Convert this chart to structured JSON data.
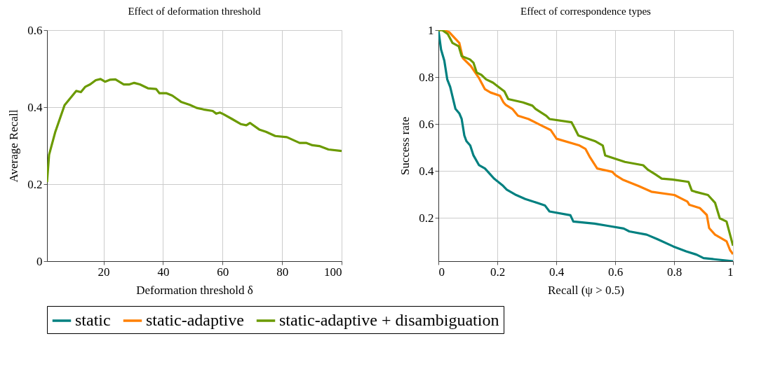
{
  "chart_data": [
    {
      "type": "line",
      "title": "Effect of deformation threshold",
      "xlabel": "Deformation threshold δ",
      "ylabel": "Average Recall",
      "xlim": [
        1,
        100
      ],
      "xticks": [
        20,
        40,
        60,
        80,
        100
      ],
      "ylim": [
        0,
        0.6
      ],
      "yticks": [
        0,
        0.2,
        0.4,
        0.6
      ],
      "grid": true,
      "legend": false,
      "series": [
        {
          "color": "#6b9a00",
          "x": [
            1,
            1.7,
            3.8,
            6.9,
            10.8,
            12.4,
            13.9,
            15.5,
            17.4,
            19,
            20.5,
            22.1,
            24,
            26.8,
            28.7,
            30.3,
            32.2,
            34.9,
            37.7,
            38.8,
            41.2,
            43.1,
            46.2,
            49,
            51.3,
            53.6,
            56.7,
            57.9,
            59.1,
            60.2,
            63,
            66.1,
            68,
            69.2,
            72.3,
            74.6,
            77.7,
            81.6,
            85.9,
            88.2,
            90.2,
            92.5,
            95.6,
            100
          ],
          "values": [
            0.205,
            0.276,
            0.336,
            0.405,
            0.442,
            0.439,
            0.453,
            0.459,
            0.47,
            0.473,
            0.466,
            0.471,
            0.472,
            0.459,
            0.459,
            0.463,
            0.459,
            0.449,
            0.447,
            0.436,
            0.436,
            0.43,
            0.413,
            0.406,
            0.398,
            0.394,
            0.39,
            0.383,
            0.386,
            0.382,
            0.37,
            0.356,
            0.353,
            0.359,
            0.342,
            0.336,
            0.325,
            0.322,
            0.307,
            0.307,
            0.301,
            0.299,
            0.29,
            0.286
          ]
        }
      ]
    },
    {
      "type": "line",
      "title": "Effect of correspondence types",
      "xlabel": "Recall (ψ > 0.5)",
      "ylabel": "Success rate",
      "xlim": [
        0,
        1
      ],
      "xticks": [
        0,
        0.2,
        0.4,
        0.6,
        0.8,
        1
      ],
      "ylim": [
        0.015,
        1
      ],
      "yticks": [
        0.2,
        0.4,
        0.6,
        0.8,
        1
      ],
      "grid": true,
      "legend": "bottom",
      "series": [
        {
          "name": "static",
          "color": "#008080",
          "x": [
            0,
            0.009,
            0.02,
            0.03,
            0.04,
            0.058,
            0.071,
            0.079,
            0.088,
            0.095,
            0.108,
            0.119,
            0.138,
            0.158,
            0.189,
            0.217,
            0.232,
            0.264,
            0.295,
            0.334,
            0.362,
            0.377,
            0.448,
            0.458,
            0.53,
            0.578,
            0.629,
            0.648,
            0.707,
            0.743,
            0.797,
            0.841,
            0.876,
            0.9,
            1
          ],
          "values": [
            1,
            0.917,
            0.87,
            0.79,
            0.758,
            0.664,
            0.645,
            0.621,
            0.551,
            0.527,
            0.508,
            0.466,
            0.424,
            0.41,
            0.367,
            0.339,
            0.32,
            0.297,
            0.28,
            0.264,
            0.252,
            0.227,
            0.211,
            0.184,
            0.175,
            0.165,
            0.154,
            0.142,
            0.128,
            0.109,
            0.078,
            0.057,
            0.043,
            0.028,
            0.015
          ]
        },
        {
          "name": "static-adaptive",
          "color": "#ff8000",
          "x": [
            0,
            0.016,
            0.036,
            0.071,
            0.083,
            0.11,
            0.138,
            0.158,
            0.177,
            0.209,
            0.221,
            0.228,
            0.251,
            0.27,
            0.306,
            0.342,
            0.381,
            0.401,
            0.479,
            0.499,
            0.515,
            0.539,
            0.59,
            0.601,
            0.625,
            0.68,
            0.723,
            0.801,
            0.845,
            0.852,
            0.888,
            0.911,
            0.919,
            0.939,
            0.978,
            0.99,
            1
          ],
          "values": [
            1,
            1,
            0.992,
            0.945,
            0.88,
            0.847,
            0.795,
            0.748,
            0.734,
            0.72,
            0.692,
            0.682,
            0.664,
            0.635,
            0.621,
            0.598,
            0.574,
            0.537,
            0.508,
            0.494,
            0.457,
            0.41,
            0.396,
            0.382,
            0.363,
            0.335,
            0.311,
            0.297,
            0.269,
            0.255,
            0.241,
            0.212,
            0.156,
            0.128,
            0.1,
            0.062,
            0.045
          ]
        },
        {
          "name": "static-adaptive + disambiguation",
          "color": "#6b9a00",
          "x": [
            0,
            0.013,
            0.032,
            0.048,
            0.069,
            0.079,
            0.107,
            0.119,
            0.13,
            0.146,
            0.162,
            0.185,
            0.209,
            0.224,
            0.237,
            0.287,
            0.319,
            0.33,
            0.366,
            0.377,
            0.452,
            0.46,
            0.475,
            0.531,
            0.558,
            0.566,
            0.633,
            0.695,
            0.711,
            0.735,
            0.758,
            0.794,
            0.849,
            0.86,
            0.872,
            0.915,
            0.939,
            0.955,
            0.978,
            1
          ],
          "values": [
            1,
            1,
            0.983,
            0.945,
            0.931,
            0.889,
            0.875,
            0.861,
            0.819,
            0.809,
            0.79,
            0.776,
            0.753,
            0.739,
            0.706,
            0.692,
            0.678,
            0.664,
            0.635,
            0.621,
            0.607,
            0.588,
            0.551,
            0.527,
            0.508,
            0.466,
            0.438,
            0.424,
            0.405,
            0.386,
            0.367,
            0.363,
            0.353,
            0.316,
            0.311,
            0.297,
            0.264,
            0.198,
            0.184,
            0.081
          ]
        }
      ]
    }
  ]
}
